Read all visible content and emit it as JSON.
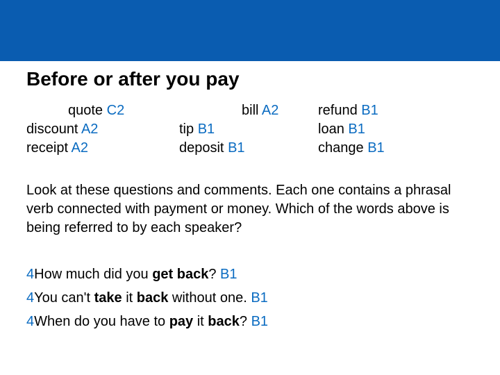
{
  "colors": {
    "header_bg": "#0a5cb0",
    "accent": "#0a6bc1",
    "text": "#000000",
    "bg": "#ffffff"
  },
  "title": "Before or after you pay",
  "vocab": {
    "row1": {
      "c1_word": "quote",
      "c1_level": "C2",
      "c2_word": "bill",
      "c2_level": "A2",
      "c3_word": "refund",
      "c3_level": "B1"
    },
    "row2": {
      "c1_word": "discount",
      "c1_level": "A2",
      "c2_word": "tip",
      "c2_level": "B1",
      "c3_word": "loan",
      "c3_level": "B1"
    },
    "row3": {
      "c1_word": "receipt",
      "c1_level": "A2",
      "c2_word": "deposit",
      "c2_level": "B1",
      "c3_word": "change",
      "c3_level": "B1"
    }
  },
  "instruction": "Look at these questions and comments. Each one contains a phrasal verb connected with payment or money. Which of the words above is being referred to by each speaker?",
  "questions": {
    "q1": {
      "num": "4",
      "pre": "How much did you ",
      "b1": "get back",
      "mid": "",
      "b2": "",
      "post": "? ",
      "ans": "B1"
    },
    "q2": {
      "num": "4",
      "pre": "You can't ",
      "b1": "take",
      "mid": " it ",
      "b2": "back",
      "post": " without one. ",
      "ans": "B1"
    },
    "q3": {
      "num": "4",
      "pre": "When do you have to ",
      "b1": "pay",
      "mid": " it ",
      "b2": "back",
      "post": "? ",
      "ans": "B1"
    }
  }
}
